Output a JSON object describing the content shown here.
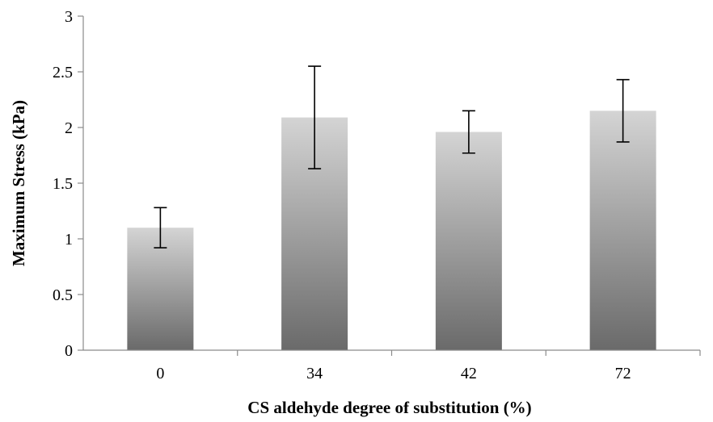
{
  "chart_data": {
    "type": "bar",
    "title": "",
    "xlabel": "CS aldehyde degree of substitution (%)",
    "ylabel": "Maximum Stress (kPa)",
    "categories": [
      "0",
      "34",
      "42",
      "72"
    ],
    "values": [
      1.1,
      2.09,
      1.96,
      2.15
    ],
    "error": [
      0.18,
      0.46,
      0.19,
      0.28
    ],
    "ylim": [
      0,
      3
    ],
    "yticks": [
      0,
      0.5,
      1,
      1.5,
      2,
      2.5,
      3
    ],
    "ytick_labels": [
      "0",
      "0.5",
      "1",
      "1.5",
      "2",
      "2.5",
      "3"
    ],
    "grid": false,
    "legend": "none",
    "colors": {
      "bar_top": "#d4d4d4",
      "bar_bottom": "#6a6a6a",
      "axis": "#8a8a8a",
      "error_bar": "#000000"
    }
  }
}
